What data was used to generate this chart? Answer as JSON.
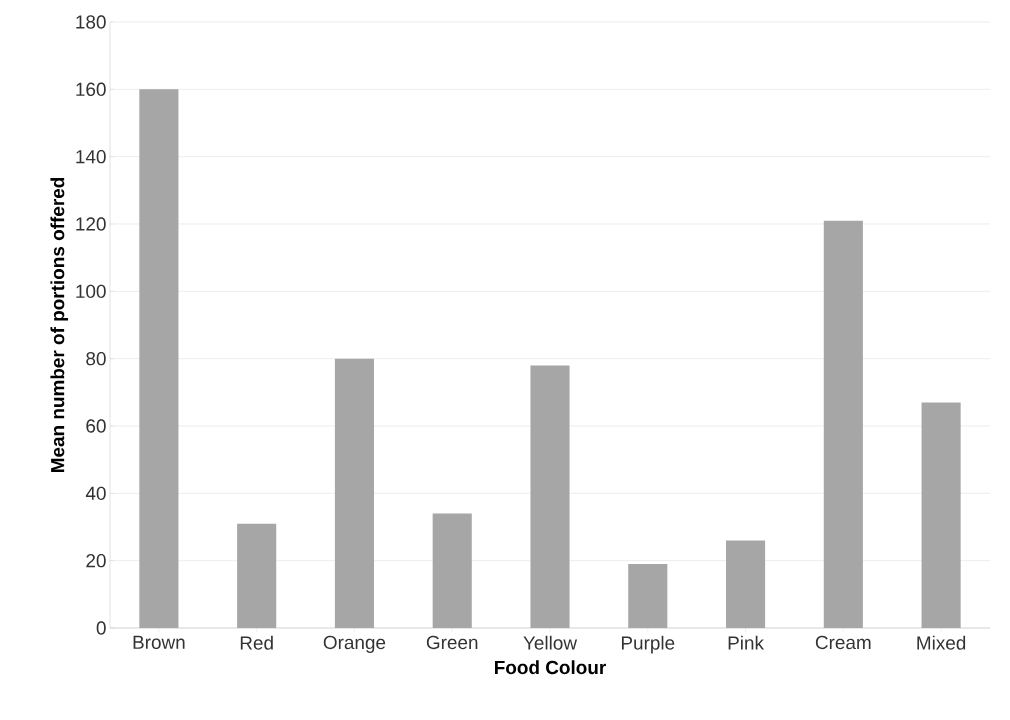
{
  "chart_data": {
    "type": "bar",
    "xlabel": "Food Colour",
    "ylabel": "Mean number of portions offered",
    "categories": [
      "Brown",
      "Red",
      "Orange",
      "Green",
      "Yellow",
      "Purple",
      "Pink",
      "Cream",
      "Mixed"
    ],
    "values": [
      160,
      31,
      80,
      34,
      78,
      19,
      26,
      121,
      67
    ],
    "color": "#a6a6a6",
    "ylim": [
      0,
      180
    ],
    "yticks": [
      0,
      20,
      40,
      60,
      80,
      100,
      120,
      140,
      160,
      180
    ],
    "grid": "y"
  }
}
